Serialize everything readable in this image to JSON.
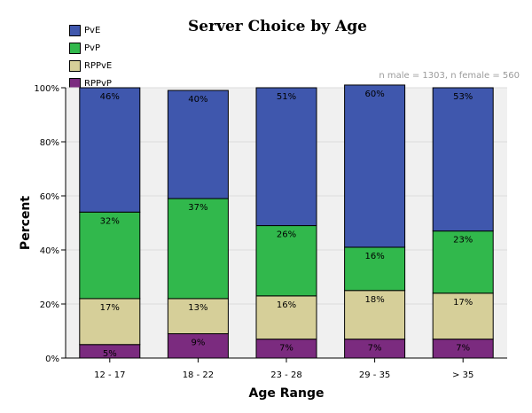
{
  "chart_data": {
    "type": "bar",
    "stacked": true,
    "title": "Server Choice by Age",
    "subtitle": "n male = 1303, n female = 560",
    "xlabel": "Age Range",
    "ylabel": "Percent",
    "ylim": [
      0,
      100
    ],
    "y_ticks": [
      "0%",
      "20%",
      "40%",
      "60%",
      "80%",
      "100%"
    ],
    "grid": true,
    "legend_position": "top-left",
    "categories": [
      "12 - 17",
      "18 - 22",
      "23 - 28",
      "29 - 35",
      "> 35"
    ],
    "series": [
      {
        "name": "RPPvP",
        "color": "#7b2b7f",
        "values": [
          5,
          9,
          7,
          7,
          7
        ],
        "labels": [
          "5%",
          "9%",
          "7%",
          "7%",
          "7%"
        ]
      },
      {
        "name": "RPPvE",
        "color": "#d6cf99",
        "values": [
          17,
          13,
          16,
          18,
          17
        ],
        "labels": [
          "17%",
          "13%",
          "16%",
          "18%",
          "17%"
        ]
      },
      {
        "name": "PvP",
        "color": "#31b84c",
        "values": [
          32,
          37,
          26,
          16,
          23
        ],
        "labels": [
          "32%",
          "37%",
          "26%",
          "16%",
          "23%"
        ]
      },
      {
        "name": "PvE",
        "color": "#3f57ad",
        "values": [
          46,
          40,
          51,
          60,
          53
        ],
        "labels": [
          "46%",
          "40%",
          "51%",
          "60%",
          "53%"
        ]
      }
    ],
    "legend_order": [
      "PvE",
      "PvP",
      "RPPvE",
      "RPPvP"
    ]
  }
}
